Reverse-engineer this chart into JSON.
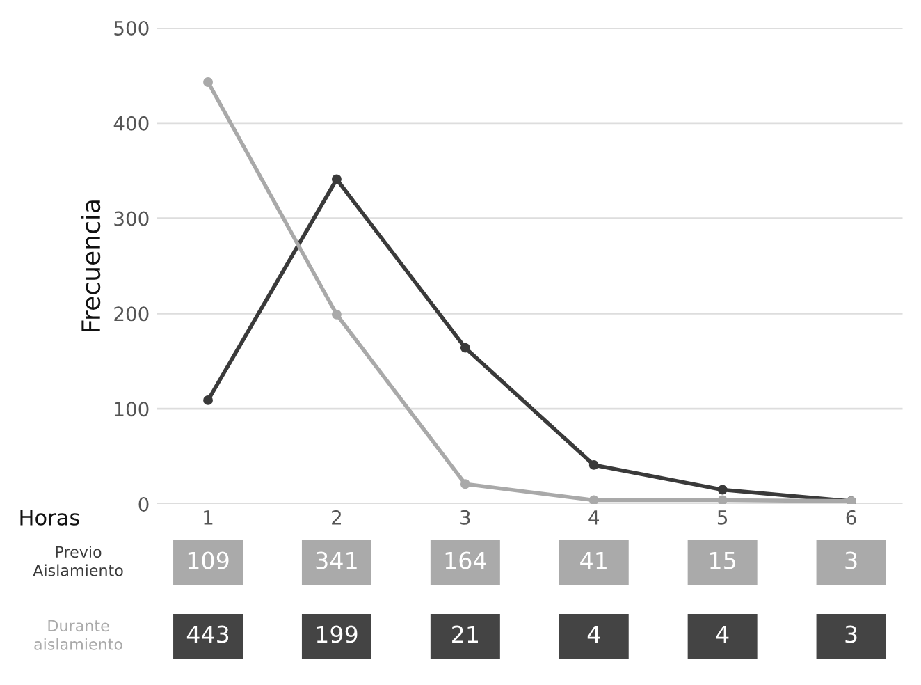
{
  "chart_data": {
    "type": "line",
    "xlabel": "Horas",
    "ylabel": "Frecuencia",
    "categories": [
      "1",
      "2",
      "3",
      "4",
      "5",
      "6"
    ],
    "series": [
      {
        "name": "Previo Aislamiento",
        "color": "#3a3a3a",
        "values": [
          109,
          341,
          164,
          41,
          15,
          3
        ]
      },
      {
        "name": "Durante aislamiento",
        "color": "#a9a9a9",
        "values": [
          443,
          199,
          21,
          4,
          4,
          3
        ]
      }
    ],
    "ylim": [
      0,
      500
    ],
    "yticks": [
      0,
      100,
      200,
      300,
      400,
      500
    ],
    "grid": "y",
    "marker": "circle",
    "line_style": "solid",
    "data_labels": true,
    "legend": false
  }
}
